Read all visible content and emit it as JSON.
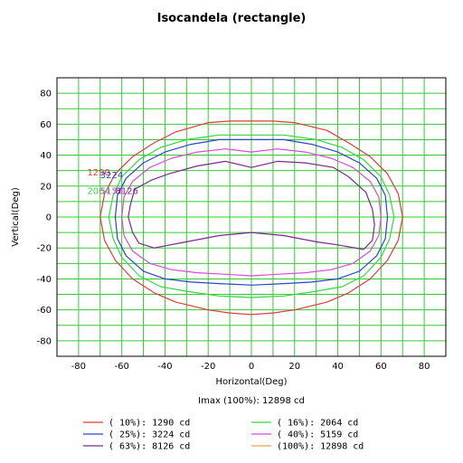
{
  "chart_data": {
    "type": "line",
    "title": "Isocandela (rectangle)",
    "xlabel": "Horizontal(Deg)",
    "ylabel": "Vertical(Deg)",
    "xlim": [
      -90,
      90
    ],
    "ylim": [
      -90,
      90
    ],
    "xticks": [
      -80,
      -60,
      -40,
      -20,
      0,
      20,
      40,
      60,
      80
    ],
    "yticks": [
      80,
      60,
      40,
      20,
      0,
      -20,
      -40,
      -60,
      -80
    ],
    "grid": true,
    "imax_text": "Imax (100%): 12898 cd",
    "series": [
      {
        "name": "( 10%):  1290 cd",
        "color": "#e03a3a",
        "value": 1290,
        "points": [
          [
            -70,
            0
          ],
          [
            -68,
            15
          ],
          [
            -63,
            28
          ],
          [
            -55,
            39
          ],
          [
            -45,
            48
          ],
          [
            -35,
            55
          ],
          [
            -20,
            61
          ],
          [
            -10,
            62
          ],
          [
            0,
            62
          ],
          [
            10,
            62
          ],
          [
            20,
            61
          ],
          [
            35,
            56
          ],
          [
            45,
            48
          ],
          [
            55,
            39
          ],
          [
            63,
            28
          ],
          [
            68,
            15
          ],
          [
            70,
            0
          ],
          [
            68,
            -15
          ],
          [
            63,
            -28
          ],
          [
            55,
            -40
          ],
          [
            45,
            -49
          ],
          [
            35,
            -55
          ],
          [
            20,
            -60
          ],
          [
            10,
            -62
          ],
          [
            0,
            -63
          ],
          [
            -10,
            -62
          ],
          [
            -20,
            -60
          ],
          [
            -35,
            -55
          ],
          [
            -45,
            -49
          ],
          [
            -55,
            -40
          ],
          [
            -63,
            -28
          ],
          [
            -68,
            -15
          ],
          [
            -70,
            0
          ]
        ]
      },
      {
        "name": "( 16%):  2064 cd",
        "color": "#39d444",
        "value": 2064,
        "points": [
          [
            -66,
            0
          ],
          [
            -64,
            14
          ],
          [
            -60,
            26
          ],
          [
            -52,
            37
          ],
          [
            -42,
            45
          ],
          [
            -30,
            50
          ],
          [
            -15,
            53
          ],
          [
            0,
            53
          ],
          [
            15,
            53
          ],
          [
            30,
            50
          ],
          [
            42,
            45
          ],
          [
            52,
            37
          ],
          [
            60,
            26
          ],
          [
            64,
            14
          ],
          [
            66,
            0
          ],
          [
            64,
            -14
          ],
          [
            60,
            -26
          ],
          [
            52,
            -38
          ],
          [
            42,
            -45
          ],
          [
            30,
            -48
          ],
          [
            15,
            -51
          ],
          [
            0,
            -52
          ],
          [
            -15,
            -51
          ],
          [
            -30,
            -48
          ],
          [
            -42,
            -45
          ],
          [
            -52,
            -38
          ],
          [
            -60,
            -26
          ],
          [
            -64,
            -14
          ],
          [
            -66,
            0
          ]
        ]
      },
      {
        "name": "( 25%):  3224 cd",
        "color": "#2a44c8",
        "value": 3224,
        "points": [
          [
            -63,
            0
          ],
          [
            -62,
            14
          ],
          [
            -58,
            25
          ],
          [
            -50,
            35
          ],
          [
            -40,
            42
          ],
          [
            -28,
            47
          ],
          [
            -15,
            50
          ],
          [
            0,
            50
          ],
          [
            15,
            50
          ],
          [
            28,
            47
          ],
          [
            40,
            42
          ],
          [
            50,
            35
          ],
          [
            58,
            25
          ],
          [
            62,
            14
          ],
          [
            63,
            0
          ],
          [
            62,
            -14
          ],
          [
            58,
            -25
          ],
          [
            50,
            -35
          ],
          [
            40,
            -40
          ],
          [
            28,
            -42
          ],
          [
            15,
            -43
          ],
          [
            0,
            -44
          ],
          [
            -15,
            -43
          ],
          [
            -28,
            -42
          ],
          [
            -40,
            -40
          ],
          [
            -50,
            -35
          ],
          [
            -58,
            -25
          ],
          [
            -62,
            -14
          ],
          [
            -63,
            0
          ]
        ]
      },
      {
        "name": "( 40%):  5159 cd",
        "color": "#d84bd8",
        "value": 5159,
        "points": [
          [
            -60,
            0
          ],
          [
            -59,
            13
          ],
          [
            -55,
            23
          ],
          [
            -47,
            32
          ],
          [
            -37,
            38
          ],
          [
            -25,
            42
          ],
          [
            -12,
            44
          ],
          [
            0,
            42
          ],
          [
            12,
            44
          ],
          [
            25,
            42
          ],
          [
            37,
            38
          ],
          [
            47,
            32
          ],
          [
            55,
            23
          ],
          [
            59,
            13
          ],
          [
            60,
            0
          ],
          [
            59,
            -12
          ],
          [
            55,
            -22
          ],
          [
            47,
            -30
          ],
          [
            37,
            -34
          ],
          [
            25,
            -36
          ],
          [
            12,
            -37
          ],
          [
            0,
            -38
          ],
          [
            -12,
            -37
          ],
          [
            -25,
            -36
          ],
          [
            -37,
            -34
          ],
          [
            -47,
            -30
          ],
          [
            -55,
            -22
          ],
          [
            -59,
            -12
          ],
          [
            -60,
            0
          ]
        ]
      },
      {
        "name": "( 63%):  8126 cd",
        "color": "#7a2a8a",
        "value": 8126,
        "points": [
          [
            -57,
            0
          ],
          [
            -56,
            8
          ],
          [
            -54,
            18
          ],
          [
            -46,
            24
          ],
          [
            -38,
            28
          ],
          [
            -25,
            33
          ],
          [
            -12,
            36
          ],
          [
            0,
            32
          ],
          [
            12,
            36
          ],
          [
            25,
            35
          ],
          [
            38,
            32
          ],
          [
            45,
            26
          ],
          [
            53,
            16
          ],
          [
            56,
            5
          ],
          [
            57,
            -5
          ],
          [
            56,
            -15
          ],
          [
            52,
            -21
          ],
          [
            40,
            -18
          ],
          [
            30,
            -16
          ],
          [
            15,
            -12
          ],
          [
            0,
            -10
          ],
          [
            -15,
            -12
          ],
          [
            -30,
            -16
          ],
          [
            -45,
            -20
          ],
          [
            -52,
            -17
          ],
          [
            -55,
            -10
          ],
          [
            -57,
            0
          ]
        ]
      },
      {
        "name": "(100%): 12898 cd",
        "color": "#e8a050",
        "value": 12898,
        "points": []
      }
    ],
    "contour_labels": [
      {
        "text": "1290",
        "color": "#e03a3a",
        "x": -76,
        "y": 27
      },
      {
        "text": "3224",
        "color": "#2a44c8",
        "x": -70,
        "y": 25
      },
      {
        "text": "2064",
        "color": "#39d444",
        "x": -76,
        "y": 15
      },
      {
        "text": "5159",
        "color": "#d84bd8",
        "x": -70,
        "y": 15
      },
      {
        "text": "8126",
        "color": "#7a2a8a",
        "x": -63,
        "y": 15
      }
    ]
  }
}
